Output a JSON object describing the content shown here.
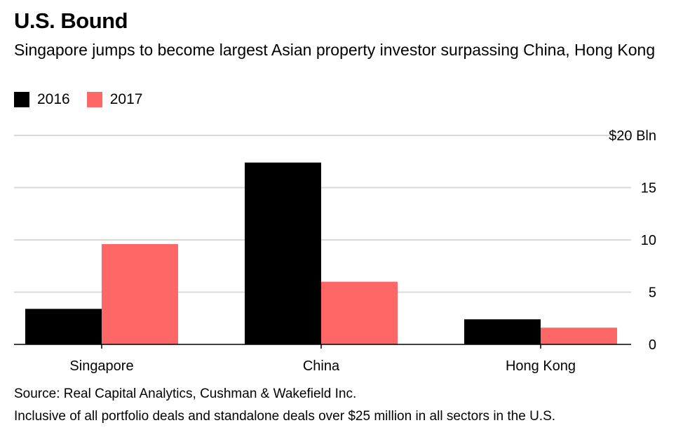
{
  "title": "U.S. Bound",
  "subtitle": "Singapore jumps to become largest Asian property investor surpassing China, Hong Kong",
  "legend": [
    {
      "label": "2016",
      "color": "#000000"
    },
    {
      "label": "2017",
      "color": "#ff6666"
    }
  ],
  "chart_data": {
    "type": "bar",
    "categories": [
      "Singapore",
      "China",
      "Hong Kong"
    ],
    "series": [
      {
        "name": "2016",
        "values": [
          3.4,
          17.4,
          2.4
        ],
        "color": "#000000"
      },
      {
        "name": "2017",
        "values": [
          9.6,
          6.0,
          1.6
        ],
        "color": "#ff6666"
      }
    ],
    "ylim": [
      0,
      20
    ],
    "yticks": [
      0,
      5,
      10,
      15,
      20
    ],
    "ytick_labels": [
      "0",
      "5",
      "10",
      "15",
      "$20 Bln"
    ],
    "legend_position": "top-left",
    "grid": true
  },
  "footer": {
    "source": "Source: Real Capital Analytics, Cushman & Wakefield Inc.",
    "note": "Inclusive of all portfolio deals and standalone deals over $25 million in all sectors in the U.S."
  }
}
